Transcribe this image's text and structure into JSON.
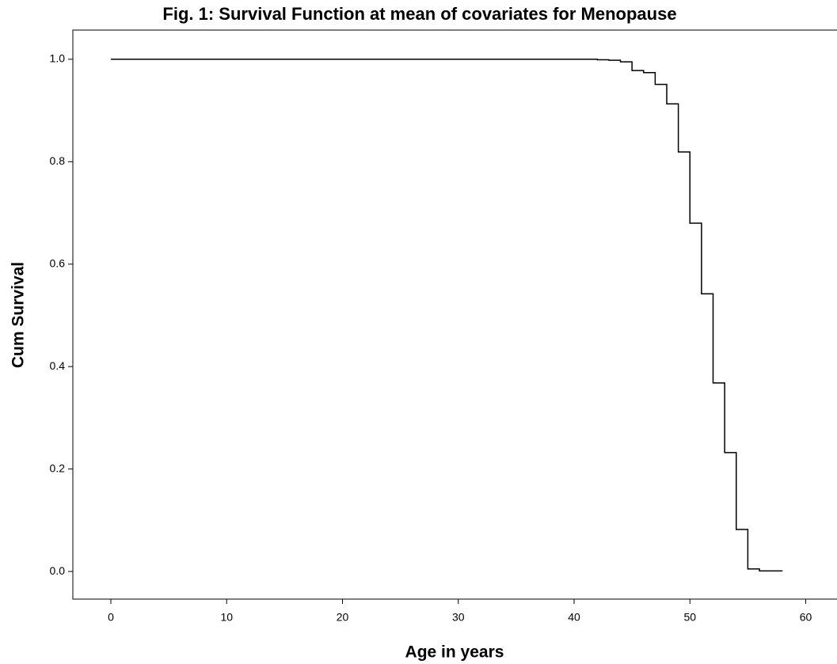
{
  "chart_data": {
    "type": "line",
    "step": "post",
    "title": "Fig. 1: Survival Function at mean of covariates for Menopause",
    "xlabel": "Age in years",
    "ylabel": "Cum Survival",
    "x": [
      0,
      42,
      43,
      44,
      45,
      46,
      47,
      48,
      49,
      50,
      51,
      52,
      53,
      54,
      55,
      56,
      58
    ],
    "values": [
      1,
      0.999,
      0.998,
      0.995,
      0.978,
      0.974,
      0.951,
      0.913,
      0.819,
      0.68,
      0.542,
      0.368,
      0.232,
      0.082,
      0.005,
      0.001,
      0.001
    ],
    "color": "#000000",
    "xlim": [
      -3.28,
      62.7
    ],
    "ylim": [
      -0.054,
      1.057
    ],
    "xticks": [
      0,
      10,
      20,
      30,
      40,
      50,
      60
    ],
    "yticks": [
      {
        "value": 0,
        "label": "0.0"
      },
      0.2,
      0.4,
      0.6,
      0.8,
      {
        "value": 1,
        "label": "1.0"
      }
    ],
    "grid": false
  }
}
